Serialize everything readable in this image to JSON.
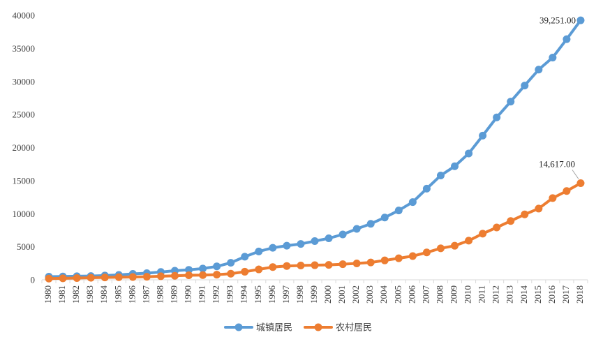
{
  "chart_data": {
    "type": "line",
    "title": "",
    "xlabel": "",
    "ylabel": "",
    "ylim": [
      0,
      40000
    ],
    "yticks": [
      0,
      5000,
      10000,
      15000,
      20000,
      25000,
      30000,
      35000,
      40000
    ],
    "grid": false,
    "legend_position": "bottom",
    "categories": [
      "1980",
      "1981",
      "1982",
      "1983",
      "1984",
      "1985",
      "1986",
      "1987",
      "1988",
      "1989",
      "1990",
      "1991",
      "1992",
      "1993",
      "1994",
      "1995",
      "1996",
      "1997",
      "1998",
      "1999",
      "2000",
      "2001",
      "2002",
      "2003",
      "2004",
      "2005",
      "2006",
      "2007",
      "2008",
      "2009",
      "2010",
      "2011",
      "2012",
      "2013",
      "2014",
      "2015",
      "2016",
      "2017",
      "2018"
    ],
    "series": [
      {
        "name": "城镇居民",
        "color": "#5B9BD5",
        "values": [
          478,
          500,
          535,
          565,
          652,
          739,
          899,
          1002,
          1181,
          1376,
          1510,
          1701,
          2027,
          2577,
          3496,
          4283,
          4839,
          5160,
          5425,
          5854,
          6280,
          6860,
          7703,
          8472,
          9422,
          10493,
          11759,
          13786,
          15781,
          17175,
          19109,
          21810,
          24565,
          26955,
          29381,
          31790,
          33616,
          36396,
          39251
        ],
        "end_label": "39,251.00"
      },
      {
        "name": "农村居民",
        "color": "#ED7D31",
        "values": [
          191,
          223,
          270,
          310,
          355,
          398,
          424,
          463,
          545,
          602,
          686,
          709,
          784,
          922,
          1221,
          1578,
          1926,
          2090,
          2162,
          2210,
          2253,
          2366,
          2476,
          2622,
          2936,
          3255,
          3587,
          4140,
          4761,
          5153,
          5919,
          6977,
          7917,
          8896,
          9892,
          10772,
          12363,
          13432,
          14617
        ],
        "end_label": "14,617.00"
      }
    ]
  }
}
